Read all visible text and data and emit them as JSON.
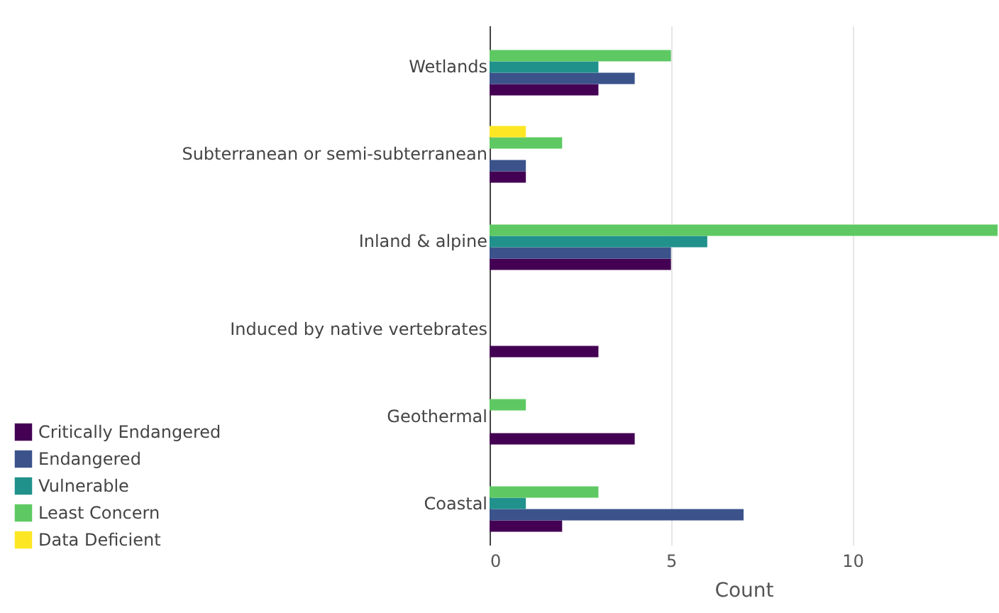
{
  "chart_data": {
    "type": "bar",
    "orientation": "horizontal",
    "xlabel": "Count",
    "categories": [
      "Wetlands",
      "Subterranean or semi-subterranean",
      "Inland & alpine",
      "Induced by native vertebrates",
      "Geothermal",
      "Coastal"
    ],
    "series": [
      {
        "name": "Critically Endangered",
        "color": "#440154",
        "values": [
          3,
          1,
          5,
          3,
          4,
          2
        ]
      },
      {
        "name": "Endangered",
        "color": "#3b528b",
        "values": [
          4,
          1,
          5,
          null,
          null,
          7
        ]
      },
      {
        "name": "Vulnerable",
        "color": "#21918c",
        "values": [
          3,
          null,
          6,
          null,
          null,
          1
        ]
      },
      {
        "name": "Least Concern",
        "color": "#5ec962",
        "values": [
          5,
          2,
          14,
          null,
          1,
          3
        ]
      },
      {
        "name": "Data Deficient",
        "color": "#fde725",
        "values": [
          null,
          1,
          null,
          null,
          null,
          null
        ]
      }
    ],
    "xlim": [
      0,
      14
    ],
    "xticks": [
      0,
      5,
      10
    ],
    "grid": "x",
    "legend": "bottom left"
  }
}
